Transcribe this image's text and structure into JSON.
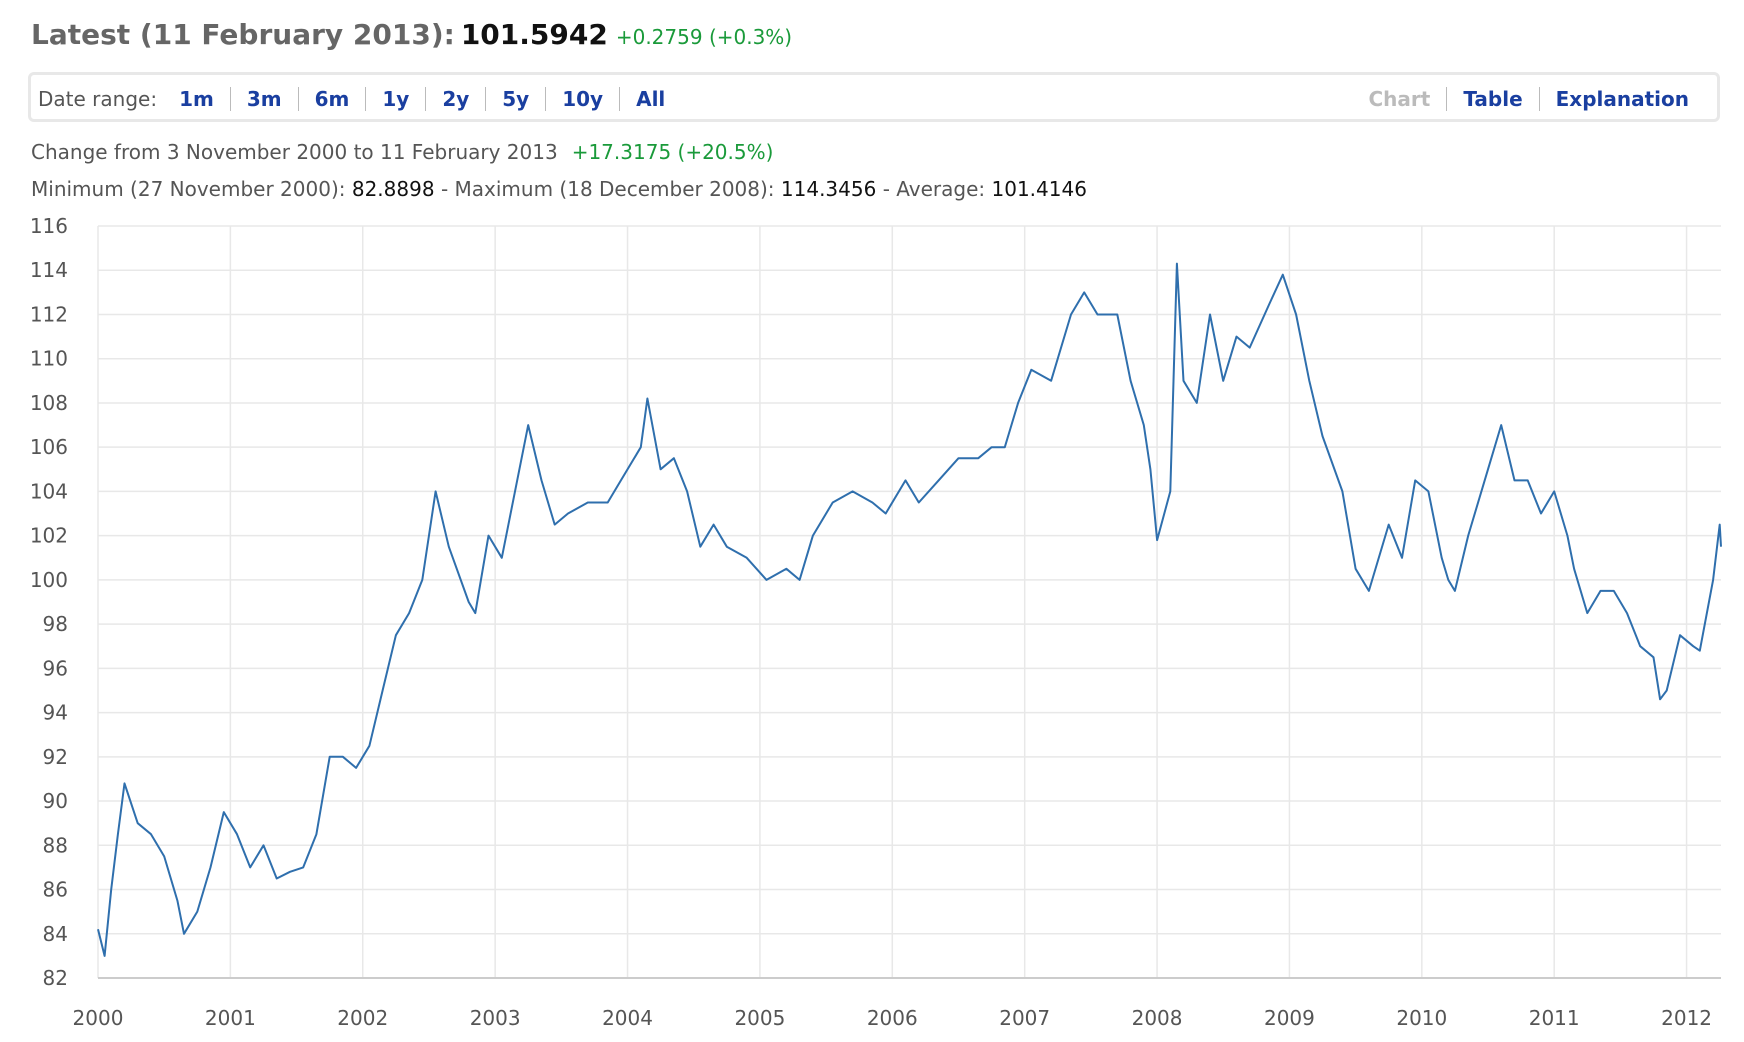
{
  "header": {
    "label": "Latest (11 February 2013):",
    "value": "101.5942",
    "change": "+0.2759 (+0.3%)"
  },
  "nav": {
    "label": "Date range:",
    "ranges": [
      "1m",
      "3m",
      "6m",
      "1y",
      "2y",
      "5y",
      "10y",
      "All"
    ],
    "views": [
      "Chart",
      "Table",
      "Explanation"
    ]
  },
  "stats": {
    "change_label": "Change from 3 November 2000 to 11 February 2013",
    "change_value": "+17.3175 (+20.5%)",
    "min_label": "Minimum (27 November 2000):",
    "min_value": "82.8898",
    "max_label": "- Maximum (18 December 2008):",
    "max_value": "114.3456",
    "avg_label": "- Average:",
    "avg_value": "101.4146"
  },
  "chart_data": {
    "type": "line",
    "color": "#2f6fad",
    "grid": true,
    "xlim": [
      2000,
      2012.26
    ],
    "xticks": [
      2000,
      2001,
      2002,
      2003,
      2004,
      2005,
      2006,
      2007,
      2008,
      2009,
      2010,
      2011,
      2012
    ],
    "ylim": [
      82,
      116
    ],
    "yticks": [
      82,
      84,
      86,
      88,
      90,
      92,
      94,
      96,
      98,
      100,
      102,
      104,
      106,
      108,
      110,
      112,
      114,
      116
    ],
    "x": [
      2000.0,
      2000.05,
      2000.1,
      2000.15,
      2000.2,
      2000.3,
      2000.4,
      2000.5,
      2000.6,
      2000.65,
      2000.75,
      2000.85,
      2000.95,
      2001.05,
      2001.15,
      2001.25,
      2001.35,
      2001.45,
      2001.55,
      2001.65,
      2001.75,
      2001.85,
      2001.95,
      2002.05,
      2002.15,
      2002.25,
      2002.35,
      2002.45,
      2002.55,
      2002.65,
      2002.8,
      2002.85,
      2002.95,
      2003.05,
      2003.15,
      2003.25,
      2003.35,
      2003.45,
      2003.55,
      2003.7,
      2003.85,
      2003.95,
      2004.1,
      2004.15,
      2004.25,
      2004.35,
      2004.45,
      2004.55,
      2004.65,
      2004.75,
      2004.9,
      2005.05,
      2005.2,
      2005.3,
      2005.4,
      2005.55,
      2005.7,
      2005.85,
      2005.95,
      2006.1,
      2006.2,
      2006.35,
      2006.5,
      2006.65,
      2006.75,
      2006.85,
      2006.95,
      2007.05,
      2007.2,
      2007.35,
      2007.45,
      2007.55,
      2007.7,
      2007.8,
      2007.9,
      2007.95,
      2008.0,
      2008.1,
      2008.15,
      2008.2,
      2008.3,
      2008.4,
      2008.5,
      2008.6,
      2008.7,
      2008.85,
      2008.95,
      2009.05,
      2009.15,
      2009.25,
      2009.4,
      2009.5,
      2009.6,
      2009.75,
      2009.85,
      2009.95,
      2010.05,
      2010.15,
      2010.2,
      2010.25,
      2010.35,
      2010.5,
      2010.6,
      2010.7,
      2010.8,
      2010.9,
      2011.0,
      2011.1,
      2011.15,
      2011.25,
      2011.35,
      2011.45,
      2011.55,
      2011.65,
      2011.75,
      2011.8,
      2011.85,
      2011.95,
      2012.05,
      2012.1,
      2012.2,
      2012.25,
      2012.26
    ],
    "values": [
      84.2,
      83.0,
      86,
      88.5,
      90.8,
      89,
      88.5,
      87.5,
      85.5,
      84.0,
      85,
      87,
      89.5,
      88.5,
      87,
      88,
      86.5,
      86.8,
      87,
      88.5,
      92,
      92,
      91.5,
      92.5,
      95,
      97.5,
      98.5,
      100,
      104,
      101.5,
      99,
      98.5,
      102,
      101,
      104,
      107,
      104.5,
      102.5,
      103,
      103.5,
      103.5,
      104.5,
      106,
      108.2,
      105,
      105.5,
      104,
      101.5,
      102.5,
      101.5,
      101,
      100,
      100.5,
      100,
      102,
      103.5,
      104,
      103.5,
      103,
      104.5,
      103.5,
      104.5,
      105.5,
      105.5,
      106,
      106,
      108,
      109.5,
      109,
      112,
      113,
      112,
      112,
      109,
      107,
      105,
      101.8,
      104,
      114.3,
      109,
      108,
      112,
      109,
      111,
      110.5,
      112.5,
      113.8,
      112,
      109,
      106.5,
      104,
      100.5,
      99.5,
      102.5,
      101,
      104.5,
      104,
      101,
      100,
      99.5,
      102,
      105,
      107,
      104.5,
      104.5,
      103,
      104,
      102,
      100.5,
      98.5,
      99.5,
      99.5,
      98.5,
      97,
      96.5,
      94.6,
      95,
      97.5,
      97,
      96.8,
      100,
      102.5,
      101.5
    ]
  }
}
